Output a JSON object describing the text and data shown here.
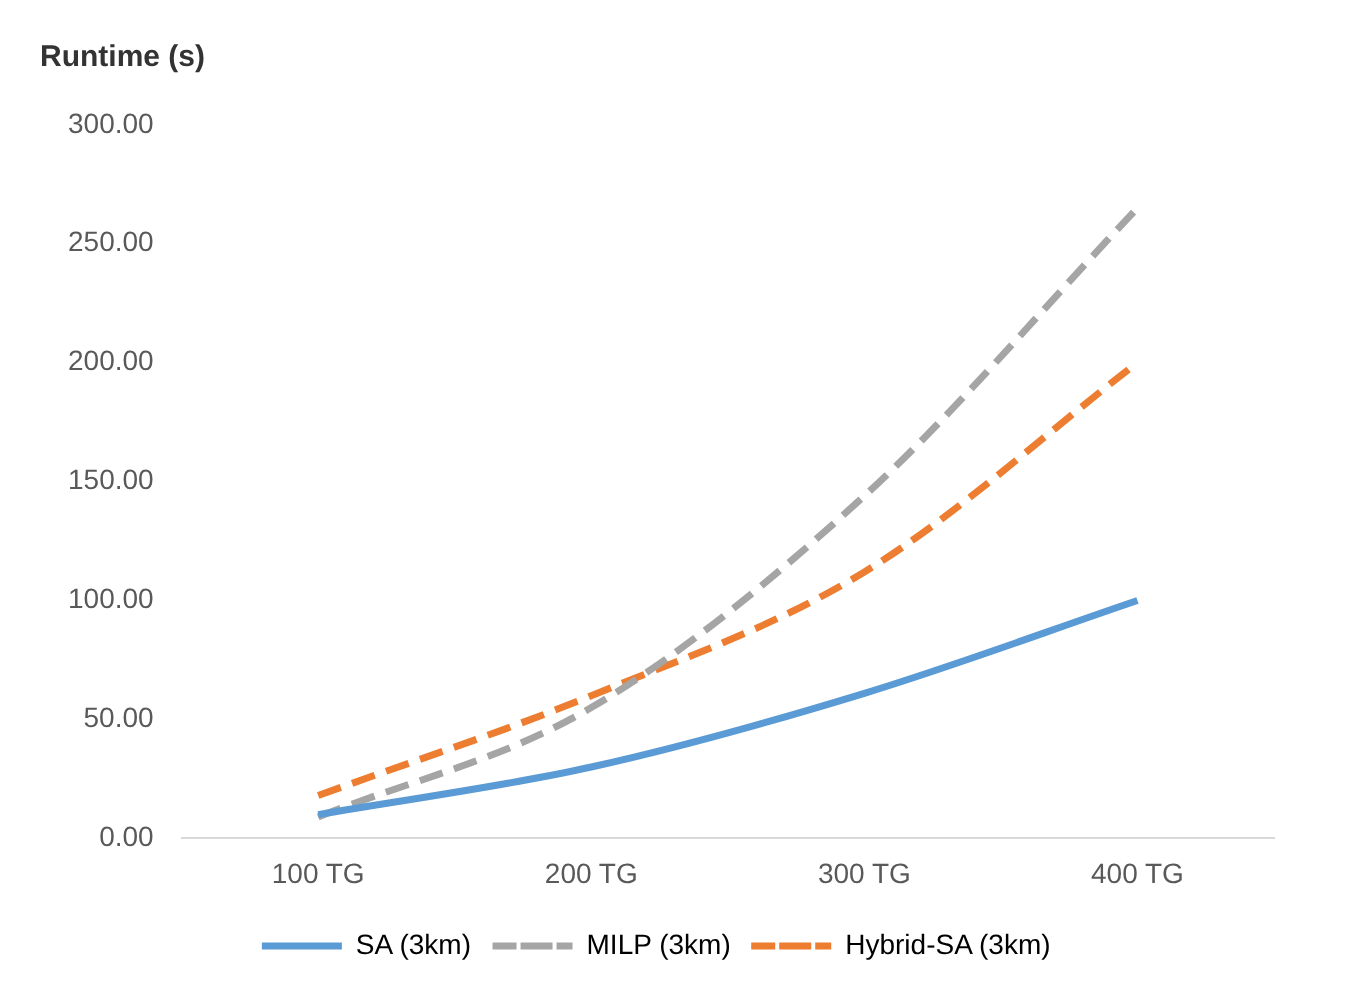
{
  "chart_data": {
    "type": "line",
    "ylabel": "Runtime (s)",
    "categories": [
      "100 TG",
      "200 TG",
      "300 TG",
      "400 TG"
    ],
    "series": [
      {
        "name": "SA (3km)",
        "color": "#5b9bd5",
        "line_style": "solid",
        "values": [
          10,
          30,
          61,
          100
        ]
      },
      {
        "name": "MILP (3km)",
        "color": "#a5a5a5",
        "line_style": "dashed",
        "values": [
          9,
          55,
          144,
          265
        ]
      },
      {
        "name": "Hybrid-SA (3km)",
        "color": "#ed7d31",
        "line_style": "dashed",
        "values": [
          18,
          60,
          112,
          200
        ]
      }
    ],
    "ylim": [
      0,
      300
    ],
    "yticks": [
      {
        "value": 0,
        "label": "0.00"
      },
      {
        "value": 50,
        "label": "50.00"
      },
      {
        "value": 100,
        "label": "100.00"
      },
      {
        "value": 150,
        "label": "150.00"
      },
      {
        "value": 200,
        "label": "200.00"
      },
      {
        "value": 250,
        "label": "250.00"
      },
      {
        "value": 300,
        "label": "300.00"
      }
    ],
    "grid": false,
    "legend": "bottom",
    "marker": "none"
  }
}
